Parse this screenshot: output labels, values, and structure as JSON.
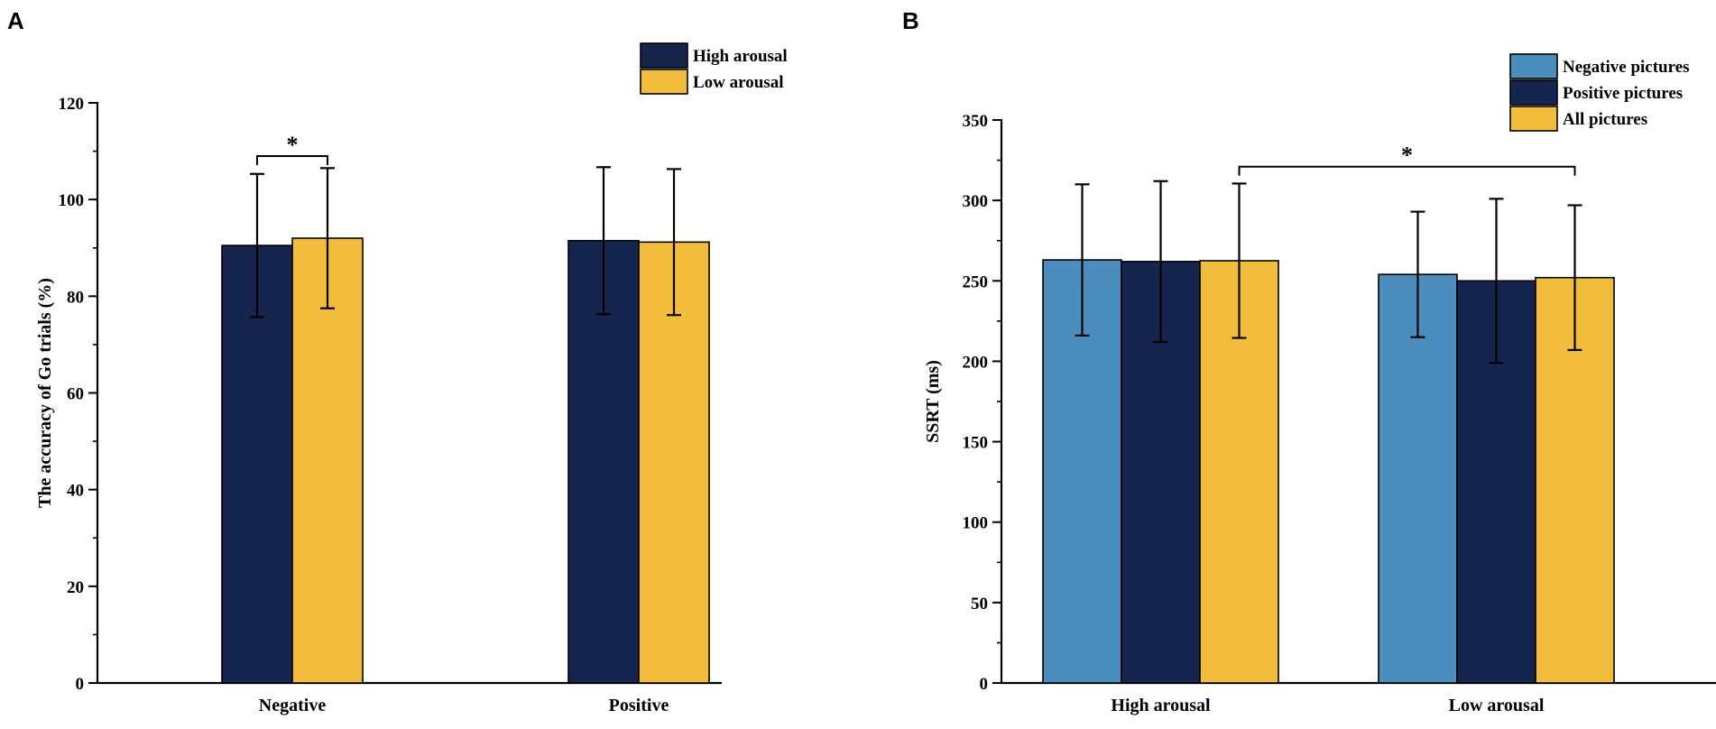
{
  "panels": {
    "a_label": "A",
    "b_label": "B"
  },
  "colors": {
    "navy": "#16254d",
    "gold": "#f2bc3c",
    "blue": "#4b8ebd"
  },
  "chart_data": [
    {
      "type": "bar",
      "panel": "A",
      "title": "",
      "xlabel": "",
      "ylabel": "The accuracy of Go trials (%)",
      "categories": [
        "Negative",
        "Positive"
      ],
      "series": [
        {
          "name": "High arousal",
          "color": "#16254d",
          "values": [
            90.5,
            91.5
          ],
          "errors": [
            14.8,
            15.2
          ]
        },
        {
          "name": "Low arousal",
          "color": "#f2bc3c",
          "values": [
            92,
            91.2
          ],
          "errors": [
            14.5,
            15.1
          ]
        }
      ],
      "ylim": [
        0,
        120
      ],
      "yticks": [
        0,
        20,
        40,
        60,
        80,
        100,
        120
      ],
      "legend_position": "top-right",
      "significance": [
        {
          "label": "*",
          "from": {
            "category": 0,
            "series": 0
          },
          "to": {
            "category": 0,
            "series": 1
          },
          "y": 109
        }
      ]
    },
    {
      "type": "bar",
      "panel": "B",
      "title": "",
      "xlabel": "",
      "ylabel": "SSRT (ms)",
      "categories": [
        "High arousal",
        "Low arousal"
      ],
      "series": [
        {
          "name": "Negative pictures",
          "color": "#4b8ebd",
          "values": [
            263,
            254
          ],
          "errors": [
            47,
            39
          ]
        },
        {
          "name": "Positive pictures",
          "color": "#16254d",
          "values": [
            262,
            250
          ],
          "errors": [
            50,
            51
          ]
        },
        {
          "name": "All pictures",
          "color": "#f2bc3c",
          "values": [
            262.5,
            252
          ],
          "errors": [
            48,
            45
          ]
        }
      ],
      "ylim": [
        0,
        350
      ],
      "yticks": [
        0,
        50,
        100,
        150,
        200,
        250,
        300,
        350
      ],
      "legend_position": "top-right",
      "significance": [
        {
          "label": "*",
          "from": {
            "category": 0,
            "series": 2
          },
          "to": {
            "category": 1,
            "series": 2
          },
          "y": 321
        }
      ]
    }
  ]
}
